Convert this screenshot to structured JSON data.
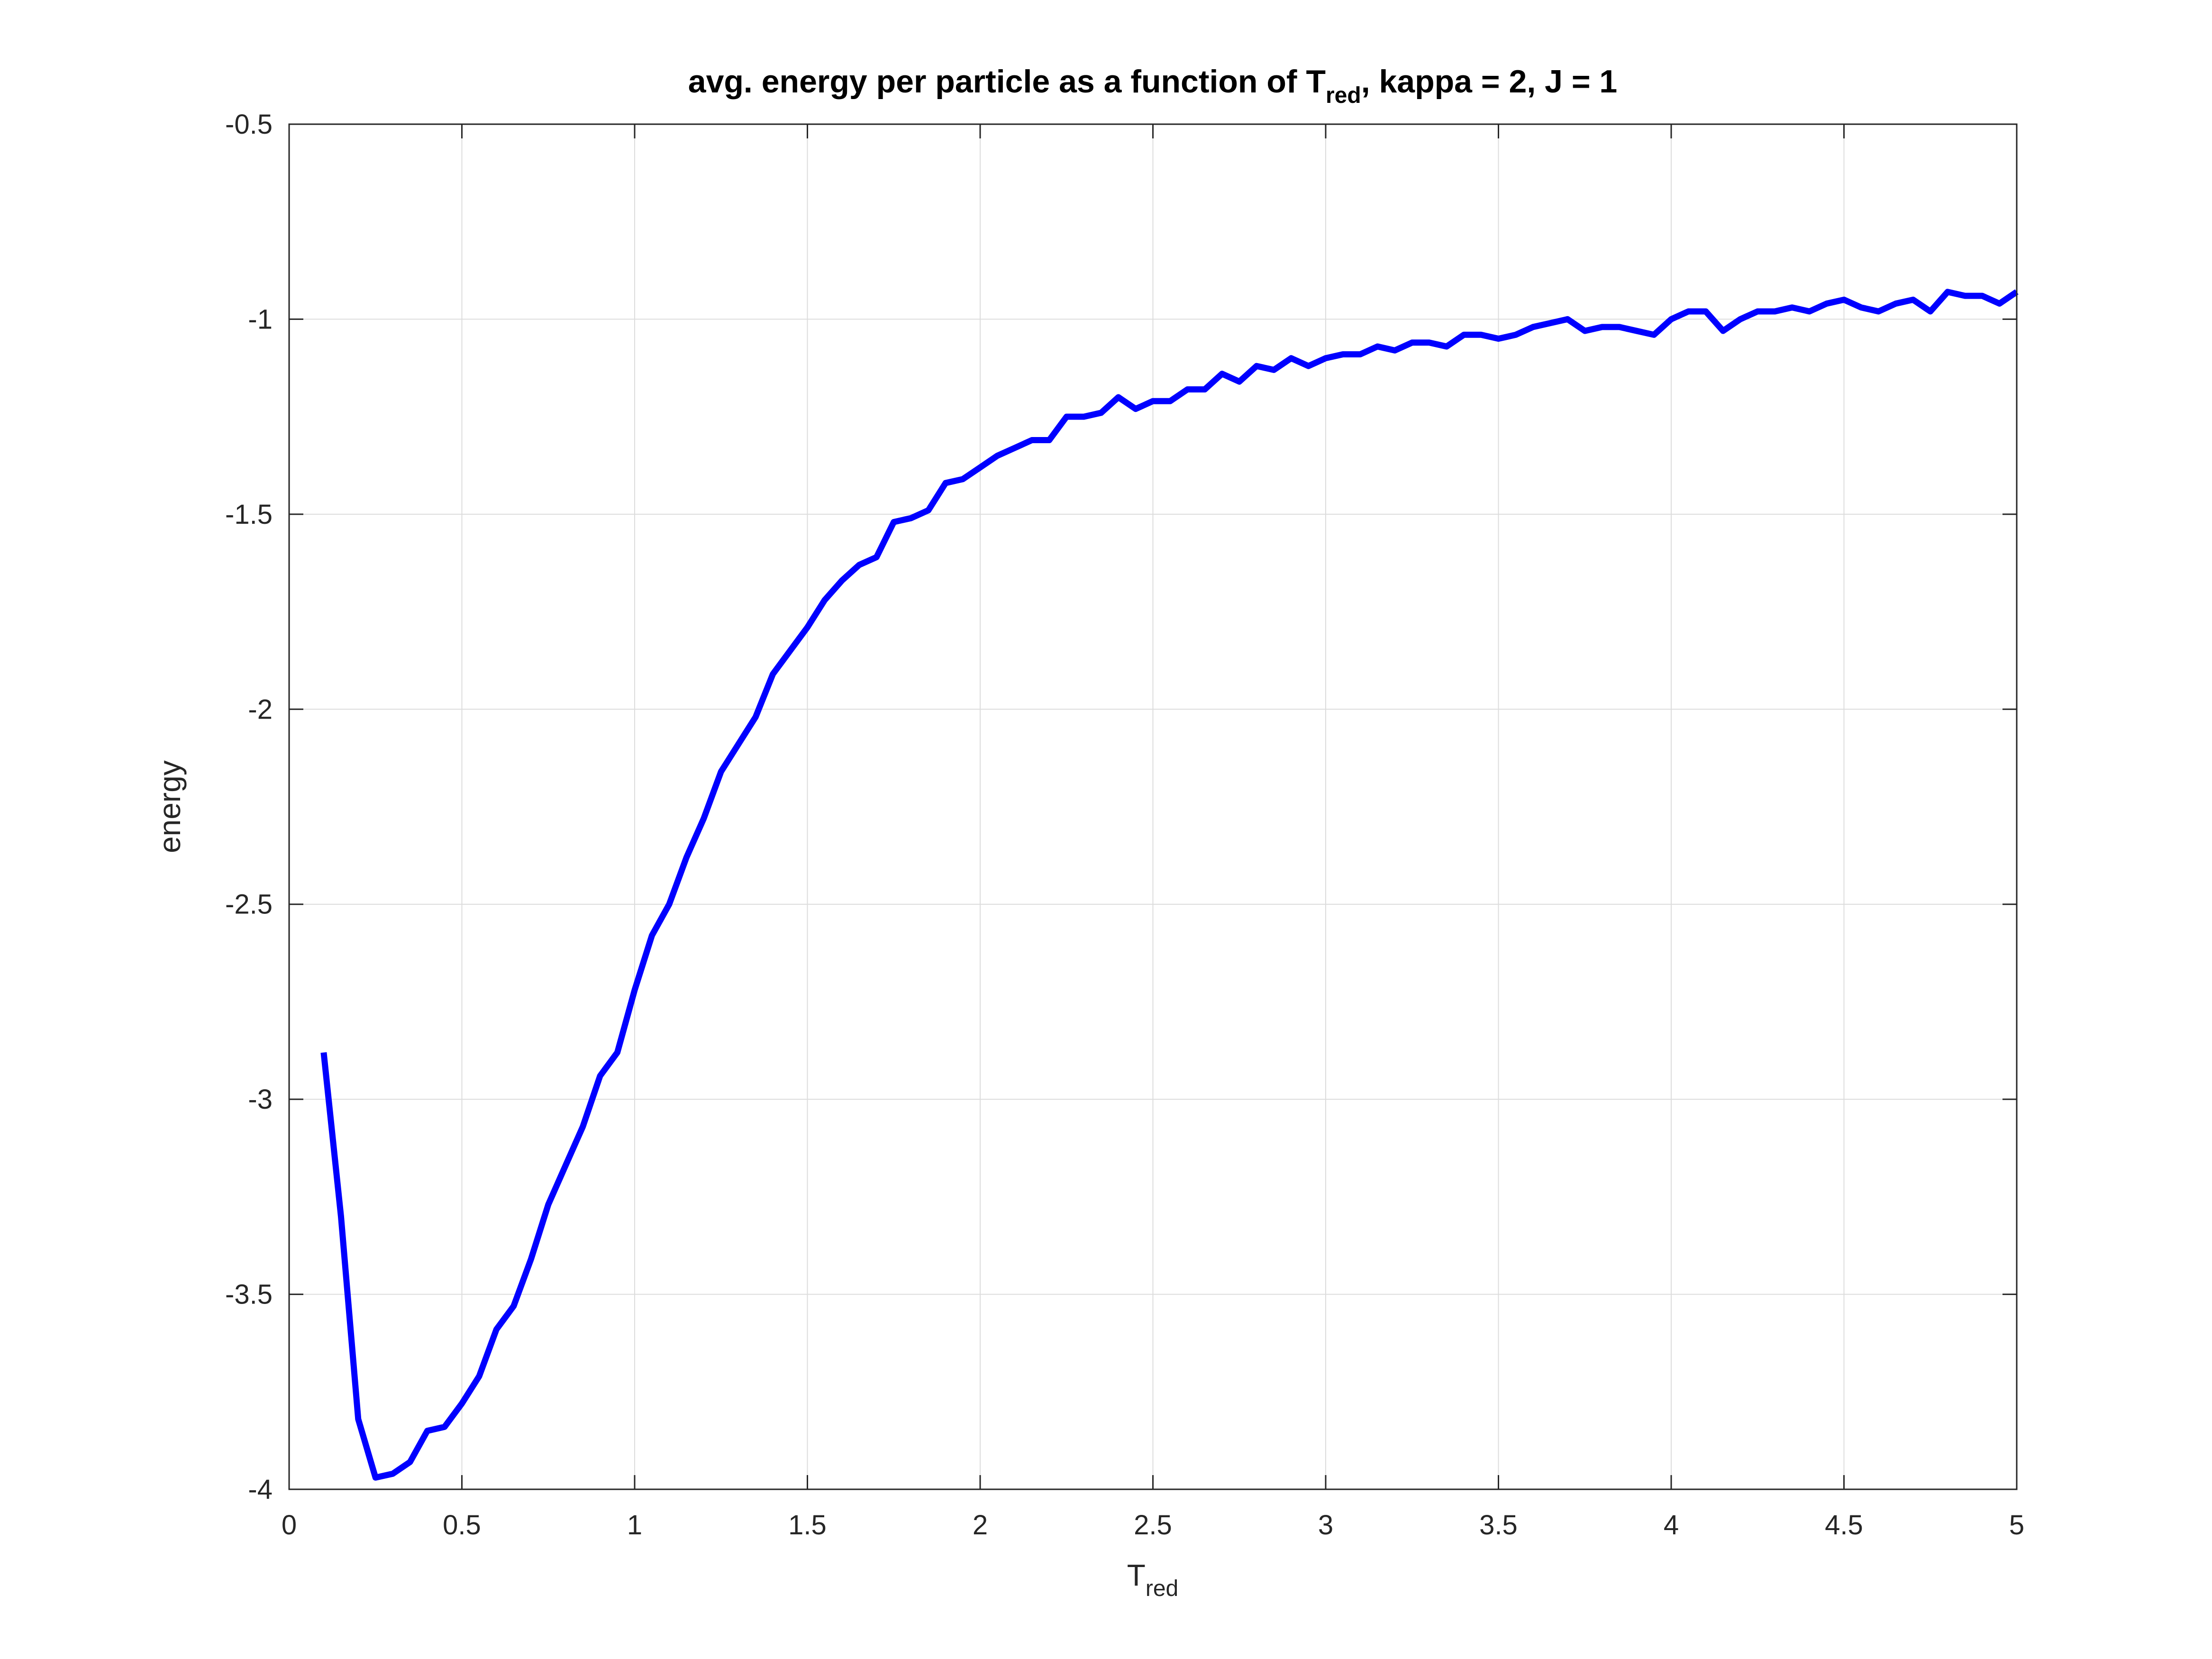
{
  "chart_data": {
    "type": "line",
    "title": {
      "prefix": "avg. energy per particle as a function of T",
      "subscript": "red",
      "suffix": ", kappa = 2, J = 1"
    },
    "xlabel": {
      "main": "T",
      "subscript": "red"
    },
    "ylabel": "energy",
    "xlim": [
      0,
      5
    ],
    "ylim": [
      -4,
      -0.5
    ],
    "xticks": [
      0,
      0.5,
      1,
      1.5,
      2,
      2.5,
      3,
      3.5,
      4,
      4.5,
      5
    ],
    "xtick_labels": [
      "0",
      "0.5",
      "1",
      "1.5",
      "2",
      "2.5",
      "3",
      "3.5",
      "4",
      "4.5",
      "5"
    ],
    "yticks": [
      -4,
      -3.5,
      -3,
      -2.5,
      -2,
      -1.5,
      -1,
      -0.5
    ],
    "ytick_labels": [
      "-4",
      "-3.5",
      "-3",
      "-2.5",
      "-2",
      "-1.5",
      "-1",
      "-0.5"
    ],
    "grid": true,
    "series": [
      {
        "color": "#0000ff",
        "x": [
          0.1,
          0.15,
          0.2,
          0.25,
          0.3,
          0.35,
          0.4,
          0.45,
          0.5,
          0.55,
          0.6,
          0.65,
          0.7,
          0.75,
          0.8,
          0.85,
          0.9,
          0.95,
          1.0,
          1.05,
          1.1,
          1.15,
          1.2,
          1.25,
          1.3,
          1.35,
          1.4,
          1.45,
          1.5,
          1.55,
          1.6,
          1.65,
          1.7,
          1.75,
          1.8,
          1.85,
          1.9,
          1.95,
          2.0,
          2.05,
          2.1,
          2.15,
          2.2,
          2.25,
          2.3,
          2.35,
          2.4,
          2.45,
          2.5,
          2.55,
          2.6,
          2.65,
          2.7,
          2.75,
          2.8,
          2.85,
          2.9,
          2.95,
          3.0,
          3.05,
          3.1,
          3.15,
          3.2,
          3.25,
          3.3,
          3.35,
          3.4,
          3.45,
          3.5,
          3.55,
          3.6,
          3.65,
          3.7,
          3.75,
          3.8,
          3.85,
          3.9,
          3.95,
          4.0,
          4.05,
          4.1,
          4.15,
          4.2,
          4.25,
          4.3,
          4.35,
          4.4,
          4.45,
          4.5,
          4.55,
          4.6,
          4.65,
          4.7,
          4.75,
          4.8,
          4.85,
          4.9,
          4.95,
          5.0
        ],
        "y": [
          -2.88,
          -3.3,
          -3.82,
          -3.97,
          -3.96,
          -3.93,
          -3.85,
          -3.84,
          -3.78,
          -3.71,
          -3.59,
          -3.53,
          -3.41,
          -3.27,
          -3.17,
          -3.07,
          -2.94,
          -2.88,
          -2.72,
          -2.58,
          -2.5,
          -2.38,
          -2.28,
          -2.16,
          -2.09,
          -2.02,
          -1.91,
          -1.85,
          -1.79,
          -1.72,
          -1.67,
          -1.63,
          -1.61,
          -1.52,
          -1.51,
          -1.49,
          -1.42,
          -1.41,
          -1.38,
          -1.35,
          -1.33,
          -1.31,
          -1.31,
          -1.25,
          -1.25,
          -1.24,
          -1.2,
          -1.23,
          -1.21,
          -1.21,
          -1.18,
          -1.18,
          -1.14,
          -1.16,
          -1.12,
          -1.13,
          -1.1,
          -1.12,
          -1.1,
          -1.09,
          -1.09,
          -1.07,
          -1.08,
          -1.06,
          -1.06,
          -1.07,
          -1.04,
          -1.04,
          -1.05,
          -1.04,
          -1.02,
          -1.01,
          -1.0,
          -1.03,
          -1.02,
          -1.02,
          -1.03,
          -1.04,
          -1.0,
          -0.98,
          -0.98,
          -1.03,
          -1.0,
          -0.98,
          -0.98,
          -0.97,
          -0.98,
          -0.96,
          -0.95,
          -0.97,
          -0.98,
          -0.96,
          -0.95,
          -0.98,
          -0.93,
          -0.94,
          -0.94,
          -0.96,
          -0.93
        ]
      }
    ]
  }
}
